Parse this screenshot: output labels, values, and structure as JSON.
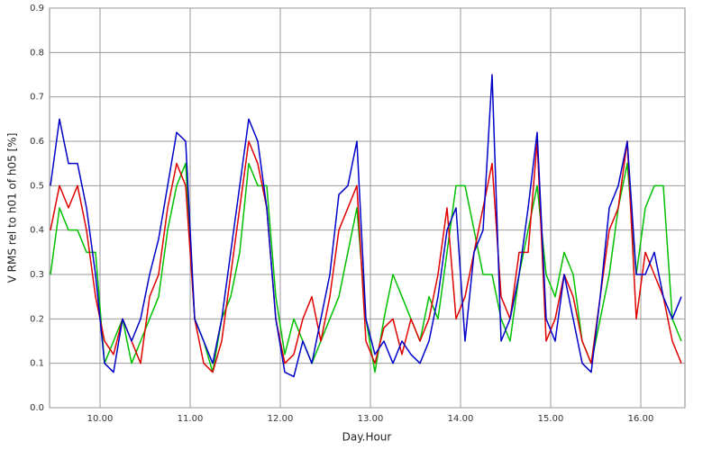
{
  "chart_data": {
    "type": "line",
    "xlabel": "Day.Hour",
    "ylabel": "V RMS rel to h01 of h05 [%]",
    "x": [
      9.45,
      9.55,
      9.65,
      9.75,
      9.85,
      9.95,
      10.05,
      10.15,
      10.25,
      10.35,
      10.45,
      10.55,
      10.65,
      10.75,
      10.85,
      10.95,
      11.05,
      11.15,
      11.25,
      11.35,
      11.45,
      11.55,
      11.65,
      11.75,
      11.85,
      11.95,
      12.05,
      12.15,
      12.25,
      12.35,
      12.45,
      12.55,
      12.65,
      12.75,
      12.85,
      12.95,
      13.05,
      13.15,
      13.25,
      13.35,
      13.45,
      13.55,
      13.65,
      13.75,
      13.85,
      13.95,
      14.05,
      14.15,
      14.25,
      14.35,
      14.45,
      14.55,
      14.65,
      14.75,
      14.85,
      14.95,
      15.05,
      15.15,
      15.25,
      15.35,
      15.45,
      15.55,
      15.65,
      15.75,
      15.85,
      15.95,
      16.05,
      16.15,
      16.25,
      16.35,
      16.45
    ],
    "series": [
      {
        "color": "#00c000",
        "values": [
          0.3,
          0.45,
          0.4,
          0.4,
          0.35,
          0.35,
          0.1,
          0.15,
          0.2,
          0.1,
          0.15,
          0.2,
          0.25,
          0.4,
          0.5,
          0.55,
          0.2,
          0.15,
          0.08,
          0.2,
          0.25,
          0.35,
          0.55,
          0.5,
          0.5,
          0.25,
          0.12,
          0.2,
          0.15,
          0.1,
          0.15,
          0.2,
          0.25,
          0.35,
          0.45,
          0.2,
          0.08,
          0.2,
          0.3,
          0.25,
          0.2,
          0.15,
          0.25,
          0.2,
          0.35,
          0.5,
          0.5,
          0.4,
          0.3,
          0.3,
          0.2,
          0.15,
          0.3,
          0.4,
          0.5,
          0.3,
          0.25,
          0.35,
          0.3,
          0.15,
          0.1,
          0.2,
          0.3,
          0.45,
          0.55,
          0.3,
          0.45,
          0.5,
          0.5,
          0.2,
          0.15
        ]
      },
      {
        "color": "#e00000",
        "values": [
          0.4,
          0.5,
          0.45,
          0.5,
          0.4,
          0.25,
          0.15,
          0.12,
          0.2,
          0.15,
          0.1,
          0.25,
          0.3,
          0.45,
          0.55,
          0.5,
          0.2,
          0.1,
          0.08,
          0.15,
          0.3,
          0.45,
          0.6,
          0.55,
          0.45,
          0.2,
          0.1,
          0.12,
          0.2,
          0.25,
          0.15,
          0.25,
          0.4,
          0.45,
          0.5,
          0.15,
          0.1,
          0.18,
          0.2,
          0.12,
          0.2,
          0.15,
          0.2,
          0.3,
          0.45,
          0.2,
          0.25,
          0.35,
          0.45,
          0.55,
          0.25,
          0.2,
          0.35,
          0.35,
          0.6,
          0.15,
          0.2,
          0.3,
          0.25,
          0.15,
          0.1,
          0.25,
          0.4,
          0.45,
          0.6,
          0.2,
          0.35,
          0.3,
          0.25,
          0.15,
          0.1
        ]
      },
      {
        "color": "#0000c8",
        "values": [
          0.5,
          0.65,
          0.55,
          0.55,
          0.45,
          0.3,
          0.1,
          0.08,
          0.2,
          0.15,
          0.2,
          0.3,
          0.38,
          0.5,
          0.62,
          0.6,
          0.2,
          0.15,
          0.1,
          0.2,
          0.35,
          0.5,
          0.65,
          0.6,
          0.45,
          0.2,
          0.08,
          0.07,
          0.15,
          0.1,
          0.2,
          0.3,
          0.48,
          0.5,
          0.6,
          0.2,
          0.12,
          0.15,
          0.1,
          0.15,
          0.12,
          0.1,
          0.15,
          0.25,
          0.4,
          0.45,
          0.15,
          0.35,
          0.4,
          0.75,
          0.15,
          0.2,
          0.3,
          0.45,
          0.62,
          0.2,
          0.15,
          0.3,
          0.2,
          0.1,
          0.08,
          0.25,
          0.45,
          0.5,
          0.6,
          0.3,
          0.3,
          0.35,
          0.25,
          0.2,
          0.25
        ]
      }
    ],
    "xlim": [
      9.44,
      16.49
    ],
    "ylim": [
      0,
      0.9
    ],
    "xticks": [
      {
        "value": 10,
        "label": "10.00"
      },
      {
        "value": 11,
        "label": "11.00"
      },
      {
        "value": 12,
        "label": "12.00"
      },
      {
        "value": 13,
        "label": "13.00"
      },
      {
        "value": 14,
        "label": "14.00"
      },
      {
        "value": 15,
        "label": "15.00"
      },
      {
        "value": 16,
        "label": "16.00"
      }
    ],
    "yticks": [
      {
        "value": 0,
        "label": "0.0"
      },
      0.1,
      0.2,
      0.3,
      0.4,
      0.5,
      0.6,
      0.7,
      0.8,
      0.9
    ],
    "grid": true
  }
}
